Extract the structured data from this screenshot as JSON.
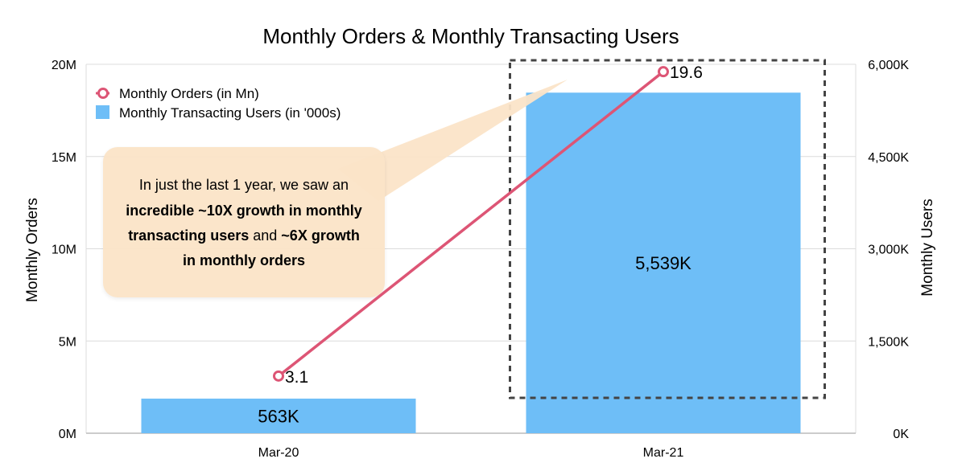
{
  "chart_data": {
    "type": "bar+line",
    "title": "Monthly Orders & Monthly Transacting Users",
    "categories": [
      "Mar-20",
      "Mar-21"
    ],
    "series": [
      {
        "name": "Monthly Transacting Users (in '000s)",
        "kind": "bar",
        "axis": "right",
        "values": [
          563,
          5539
        ],
        "labels": [
          "563K",
          "5,539K"
        ],
        "color": "#6EBEF7"
      },
      {
        "name": "Monthly Orders (in Mn)",
        "kind": "line",
        "axis": "left",
        "values": [
          3.1,
          19.6
        ],
        "labels": [
          "3.1",
          "19.6"
        ],
        "color": "#DD5575"
      }
    ],
    "left_axis": {
      "label": "Monthly Orders",
      "range": [
        0,
        20
      ],
      "ticks": [
        0,
        5,
        10,
        15,
        20
      ],
      "tick_labels": [
        "0M",
        "5M",
        "10M",
        "15M",
        "20M"
      ]
    },
    "right_axis": {
      "label": "Monthly Users",
      "range": [
        0,
        6000
      ],
      "ticks": [
        0,
        1500,
        3000,
        4500,
        6000
      ],
      "tick_labels": [
        "0K",
        "1,500K",
        "3,000K",
        "4,500K",
        "6,000K"
      ]
    },
    "grid": true,
    "legend_position": "top-left",
    "highlight_category": "Mar-21",
    "annotation": {
      "parts": [
        {
          "text": "In just the last 1 year, we saw an",
          "bold": false
        },
        {
          "text": "incredible ~10X growth in monthly",
          "bold": true
        },
        {
          "text": "transacting users",
          "bold": true
        },
        {
          "text": " and ",
          "bold": false
        },
        {
          "text": "~6X growth",
          "bold": true
        },
        {
          "text": "in monthly orders",
          "bold": true
        }
      ]
    }
  }
}
